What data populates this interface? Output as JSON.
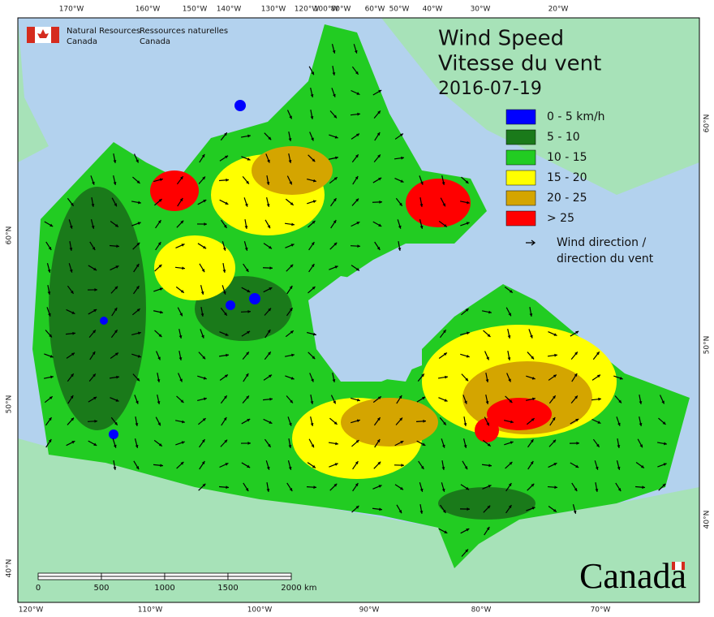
{
  "header": {
    "org_en": [
      "Natural Resources",
      "Canada"
    ],
    "org_fr": [
      "Ressources naturelles",
      "Canada"
    ]
  },
  "title": {
    "en": "Wind Speed",
    "fr": "Vitesse du vent",
    "date": "2016-07-19"
  },
  "legend": {
    "items": [
      {
        "label": "0 - 5 km/h",
        "color": "#0000ff"
      },
      {
        "label": "5 - 10",
        "color": "#1a7a1a"
      },
      {
        "label": "10 - 15",
        "color": "#22cc22"
      },
      {
        "label": "15 - 20",
        "color": "#ffff00"
      },
      {
        "label": "20 - 25",
        "color": "#d4a500"
      },
      {
        "label": "> 25",
        "color": "#ff0000"
      }
    ],
    "arrow_label": [
      "Wind direction /",
      "direction du vent"
    ]
  },
  "graticule": {
    "top": [
      "170°W",
      "160°W",
      "150°W",
      "140°W",
      "130°W",
      "120°W",
      "100°W",
      "80°W",
      "60°W",
      "50°W",
      "40°W",
      "30°W",
      "20°W"
    ],
    "bottom": [
      "120°W",
      "110°W",
      "100°W",
      "90°W",
      "80°W",
      "70°W"
    ],
    "left": [
      "60°N",
      "50°N",
      "40°N"
    ],
    "right": [
      "60°N",
      "50°N",
      "40°N"
    ]
  },
  "scale_bar": {
    "labels": [
      "0",
      "500",
      "1000",
      "1500",
      "2000"
    ],
    "unit": "km"
  },
  "wordmark": "Canada"
}
